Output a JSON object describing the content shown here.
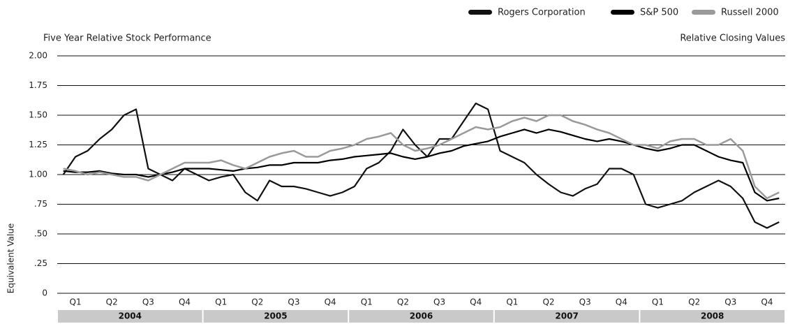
{
  "chart_data": {
    "type": "line",
    "title": "Five Year Relative Stock Performance",
    "subtitle": "Relative Closing Values",
    "y_label": "Equivalent Value",
    "categories": [
      null,
      "Q1",
      null,
      null,
      "Q2",
      null,
      null,
      "Q3",
      null,
      null,
      "Q4",
      null,
      null,
      "Q1",
      null,
      null,
      "Q2",
      null,
      null,
      "Q3",
      null,
      null,
      "Q4",
      null,
      null,
      "Q1",
      null,
      null,
      "Q2",
      null,
      null,
      "Q3",
      null,
      null,
      "Q4",
      null,
      null,
      "Q1",
      null,
      null,
      "Q2",
      null,
      null,
      "Q3",
      null,
      null,
      "Q4",
      null,
      null,
      "Q1",
      null,
      null,
      "Q2",
      null,
      null,
      "Q3",
      null,
      null,
      "Q4",
      null
    ],
    "years": [
      "2004",
      "2005",
      "2006",
      "2007",
      "2008"
    ],
    "series": [
      {
        "name": "Rogers Corporation",
        "color": "#111111",
        "values": [
          1.0,
          1.15,
          1.2,
          1.3,
          1.38,
          1.5,
          1.55,
          1.05,
          1.0,
          0.95,
          1.05,
          1.0,
          0.95,
          0.98,
          1.0,
          0.85,
          0.78,
          0.95,
          0.9,
          0.9,
          0.88,
          0.85,
          0.82,
          0.85,
          0.9,
          1.05,
          1.1,
          1.2,
          1.38,
          1.25,
          1.15,
          1.3,
          1.3,
          1.45,
          1.6,
          1.55,
          1.2,
          1.15,
          1.1,
          1.0,
          0.92,
          0.85,
          0.82,
          0.88,
          0.92,
          1.05,
          1.05,
          1.0,
          0.75,
          0.72,
          0.75,
          0.78,
          0.85,
          0.9,
          0.95,
          0.9,
          0.8,
          0.6,
          0.55,
          0.6
        ]
      },
      {
        "name": "S&P 500",
        "color": "#000000",
        "values": [
          1.03,
          1.02,
          1.02,
          1.03,
          1.01,
          1.0,
          1.0,
          0.98,
          1.0,
          1.02,
          1.05,
          1.05,
          1.05,
          1.04,
          1.03,
          1.05,
          1.06,
          1.08,
          1.08,
          1.1,
          1.1,
          1.1,
          1.12,
          1.13,
          1.15,
          1.16,
          1.17,
          1.18,
          1.15,
          1.13,
          1.15,
          1.18,
          1.2,
          1.24,
          1.26,
          1.28,
          1.32,
          1.35,
          1.38,
          1.35,
          1.38,
          1.36,
          1.33,
          1.3,
          1.28,
          1.3,
          1.28,
          1.25,
          1.22,
          1.2,
          1.22,
          1.25,
          1.25,
          1.2,
          1.15,
          1.12,
          1.1,
          0.85,
          0.78,
          0.8
        ]
      },
      {
        "name": "Russell 2000",
        "color": "#9a9a9a",
        "values": [
          1.05,
          1.03,
          1.0,
          1.02,
          1.0,
          0.98,
          0.98,
          0.95,
          1.0,
          1.05,
          1.1,
          1.1,
          1.1,
          1.12,
          1.08,
          1.05,
          1.1,
          1.15,
          1.18,
          1.2,
          1.15,
          1.15,
          1.2,
          1.22,
          1.25,
          1.3,
          1.32,
          1.35,
          1.25,
          1.2,
          1.22,
          1.25,
          1.3,
          1.35,
          1.4,
          1.38,
          1.4,
          1.45,
          1.48,
          1.45,
          1.5,
          1.5,
          1.45,
          1.42,
          1.38,
          1.35,
          1.3,
          1.25,
          1.25,
          1.22,
          1.28,
          1.3,
          1.3,
          1.25,
          1.25,
          1.3,
          1.2,
          0.9,
          0.8,
          0.85
        ]
      }
    ],
    "ylim": [
      0,
      2
    ],
    "yticks": [
      0,
      {
        "value": 0.25,
        "label": ".25"
      },
      {
        "value": 0.5,
        "label": ".50"
      },
      {
        "value": 0.75,
        "label": ".75"
      },
      {
        "value": 1,
        "label": "1.00"
      },
      {
        "value": 1.25,
        "label": "1.25"
      },
      {
        "value": 1.5,
        "label": "1.50"
      },
      {
        "value": 1.75,
        "label": "1.75"
      },
      {
        "value": 2,
        "label": "2.00"
      }
    ],
    "grid": true,
    "legend": "top-right"
  }
}
